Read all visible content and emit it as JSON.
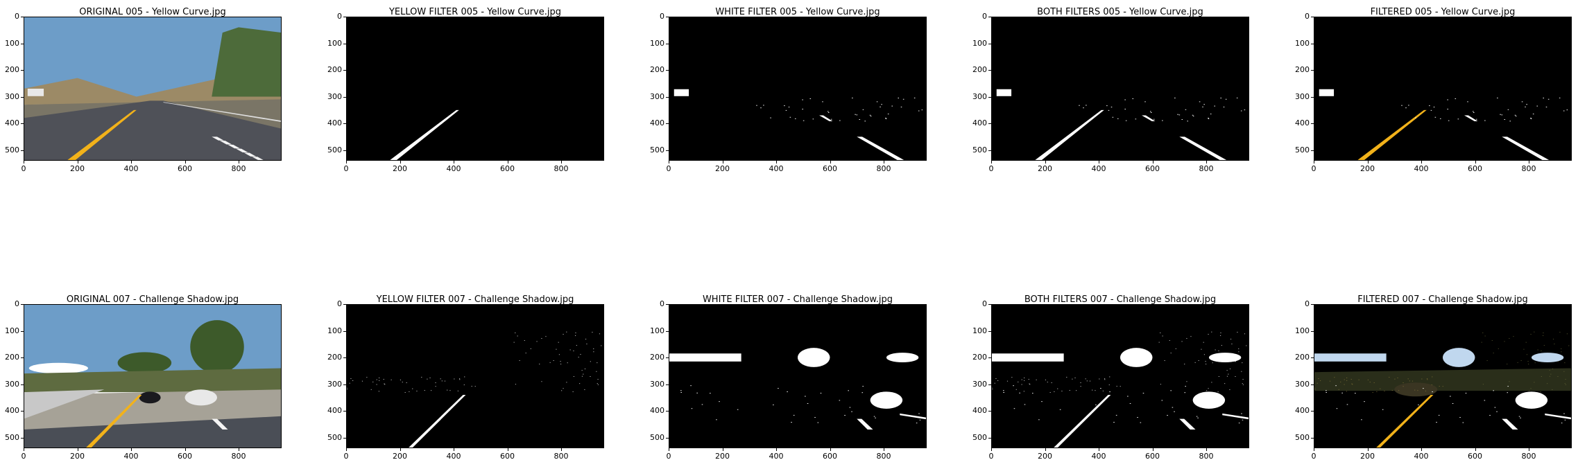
{
  "figure": {
    "rows": [
      {
        "image": "005 - Yellow Curve.jpg",
        "scene": "sunny-curve",
        "panels": [
          {
            "title": "ORIGINAL 005 - Yellow Curve.jpg",
            "kind": "original"
          },
          {
            "title": "YELLOW FILTER 005 - Yellow Curve.jpg",
            "kind": "yellow"
          },
          {
            "title": "WHITE FILTER 005 - Yellow Curve.jpg",
            "kind": "white"
          },
          {
            "title": "BOTH FILTERS 005 - Yellow Curve.jpg",
            "kind": "both"
          },
          {
            "title": "FILTERED 005 - Yellow Curve.jpg",
            "kind": "filtered"
          }
        ]
      },
      {
        "image": "007 - Challenge Shadow.jpg",
        "scene": "shadow-trees",
        "panels": [
          {
            "title": "ORIGINAL 007 - Challenge Shadow.jpg",
            "kind": "original"
          },
          {
            "title": "YELLOW FILTER 007 - Challenge Shadow.jpg",
            "kind": "yellow"
          },
          {
            "title": "WHITE FILTER 007 - Challenge Shadow.jpg",
            "kind": "white"
          },
          {
            "title": "BOTH FILTERS 007 - Challenge Shadow.jpg",
            "kind": "both"
          },
          {
            "title": "FILTERED 007 - Challenge Shadow.jpg",
            "kind": "filtered"
          }
        ]
      }
    ],
    "axes": {
      "x_range": [
        0,
        960
      ],
      "y_range": [
        0,
        540
      ],
      "x_ticks": [
        "0",
        "200",
        "400",
        "600",
        "800"
      ],
      "y_ticks": [
        "0",
        "100",
        "200",
        "300",
        "400",
        "500"
      ]
    },
    "colors": {
      "background": "#ffffff",
      "mask_background": "#000000",
      "mask_foreground": "#ffffff",
      "lane_yellow": "#f2b21a",
      "sky": "#6d9dc8",
      "asphalt": "#4f5158",
      "pale_sky_blob": "#c0d7ee"
    }
  }
}
